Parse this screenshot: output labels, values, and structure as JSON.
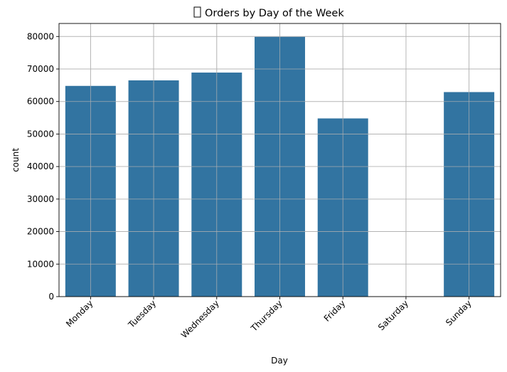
{
  "chart_data": {
    "type": "bar",
    "title": "Orders by Day of the Week",
    "title_icon": "missing-glyph-box",
    "xlabel": "Day",
    "ylabel": "count",
    "categories": [
      "Monday",
      "Tuesday",
      "Wednesday",
      "Thursday",
      "Friday",
      "Saturday",
      "Sunday"
    ],
    "values": [
      64800,
      66500,
      68900,
      79900,
      54800,
      0,
      62900
    ],
    "ylim": [
      0,
      84000
    ],
    "yticks": [
      "0",
      "10000",
      "20000",
      "30000",
      "40000",
      "50000",
      "60000",
      "70000",
      "80000"
    ],
    "ytick_values": [
      0,
      10000,
      20000,
      30000,
      40000,
      50000,
      60000,
      70000,
      80000
    ],
    "grid": true,
    "bar_color": "#3274a1",
    "grid_color": "#b0b0b0"
  }
}
